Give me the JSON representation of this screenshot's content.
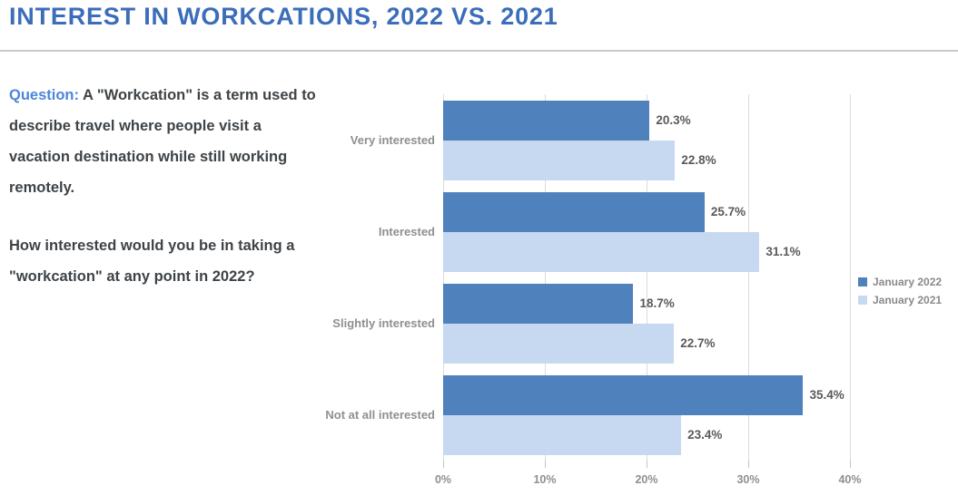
{
  "header": {
    "title": "INTEREST IN WORKCATIONS, 2022 VS. 2021"
  },
  "question": {
    "label": "Question:",
    "paragraph1": "A \"Workcation\" is a term used to describe travel where people visit a vacation destination while still working remotely.",
    "paragraph2": "How interested would you be in taking a \"workcation\" at any point in 2022?"
  },
  "chart_data": {
    "type": "bar",
    "orientation": "horizontal",
    "title": "Interest in Workcations, 2022 vs. 2021",
    "categories": [
      "Very interested",
      "Interested",
      "Slightly interested",
      "Not at all interested"
    ],
    "series": [
      {
        "name": "January 2022",
        "color": "#4F81BD",
        "values": [
          20.3,
          25.7,
          18.7,
          35.4
        ]
      },
      {
        "name": "January 2021",
        "color": "#C6D9F1",
        "values": [
          22.8,
          31.1,
          22.7,
          23.4
        ]
      }
    ],
    "value_suffix": "%",
    "xlim": [
      0,
      40
    ],
    "x_ticks": [
      {
        "value": 0,
        "label": "0%"
      },
      {
        "value": 10,
        "label": "10%"
      },
      {
        "value": 20,
        "label": "20%"
      },
      {
        "value": 30,
        "label": "30%"
      },
      {
        "value": 40,
        "label": "40%"
      }
    ],
    "grid": true,
    "legend_position": "right"
  },
  "colors": {
    "title_blue": "#3B6DB9",
    "question_label_blue": "#4C86D9",
    "body_text": "#3E4347",
    "divider_gray": "#C9C9C9",
    "gridline_gray": "#DCDCDC",
    "axis_text_gray": "#8F8F8F",
    "value_label_gray": "#5A5A5A",
    "series_2022": "#4F81BD",
    "series_2021": "#C6D9F1"
  }
}
